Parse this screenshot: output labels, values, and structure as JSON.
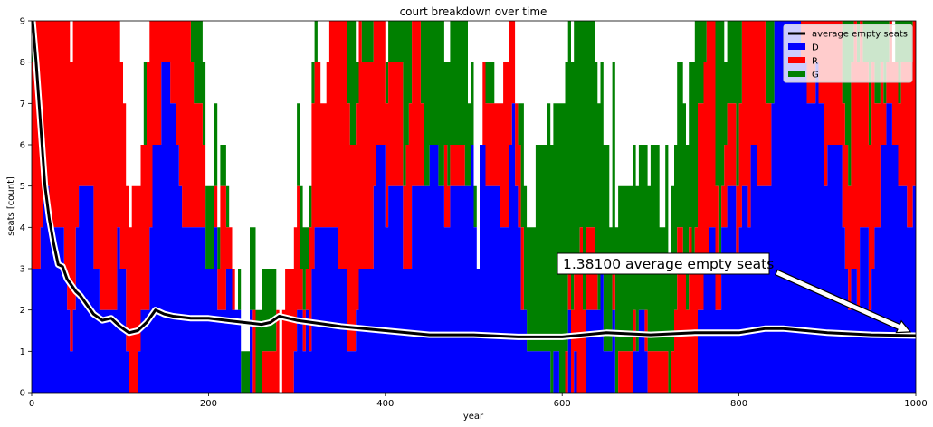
{
  "chart_data": {
    "type": "area",
    "title": "court breakdown over time",
    "xlabel": "year",
    "ylabel": "seats [count]",
    "xlim": [
      0,
      1000
    ],
    "ylim": [
      0,
      9
    ],
    "xticks": [
      0,
      200,
      400,
      600,
      800,
      1000
    ],
    "yticks": [
      0,
      1,
      2,
      3,
      4,
      5,
      6,
      7,
      8,
      9
    ],
    "legend_position": "top-right",
    "colors": {
      "D": "#0000ff",
      "R": "#ff0000",
      "G": "#008000",
      "avg": "#000000"
    },
    "series": [
      {
        "name": "D",
        "kind": "area",
        "color": "#0000ff"
      },
      {
        "name": "R",
        "kind": "area",
        "color": "#ff0000"
      },
      {
        "name": "G",
        "kind": "area",
        "color": "#008000"
      },
      {
        "name": "average empty seats",
        "kind": "line",
        "x": [
          1,
          5,
          10,
          15,
          20,
          25,
          30,
          35,
          40,
          45,
          50,
          55,
          60,
          65,
          70,
          80,
          90,
          100,
          110,
          120,
          130,
          140,
          150,
          160,
          180,
          200,
          220,
          240,
          260,
          270,
          280,
          300,
          350,
          400,
          450,
          500,
          550,
          600,
          650,
          700,
          750,
          800,
          830,
          850,
          900,
          950,
          1000
        ],
        "y": [
          9.0,
          8.0,
          6.5,
          5.0,
          4.2,
          3.6,
          3.1,
          3.05,
          2.75,
          2.6,
          2.45,
          2.35,
          2.2,
          2.05,
          1.9,
          1.75,
          1.8,
          1.6,
          1.45,
          1.5,
          1.7,
          2.0,
          1.9,
          1.85,
          1.8,
          1.8,
          1.75,
          1.7,
          1.65,
          1.7,
          1.85,
          1.75,
          1.6,
          1.5,
          1.4,
          1.4,
          1.35,
          1.35,
          1.45,
          1.4,
          1.45,
          1.45,
          1.55,
          1.55,
          1.45,
          1.4,
          1.38
        ]
      }
    ],
    "annotation": {
      "text": "1.38100 average empty seats",
      "arrow_to": [
        1000,
        1.381
      ]
    }
  }
}
